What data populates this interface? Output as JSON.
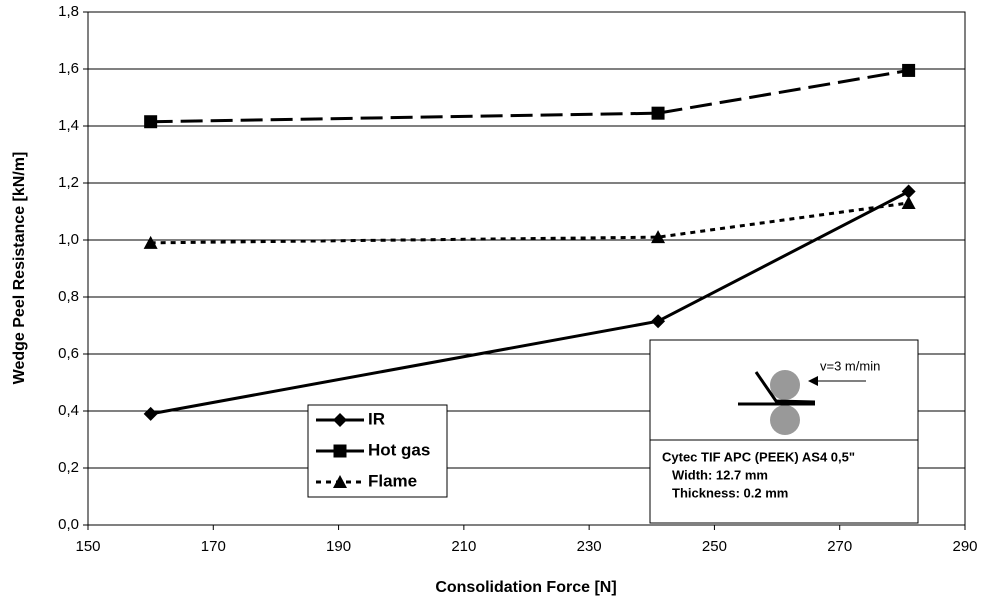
{
  "chart_data": {
    "type": "line",
    "x_label": "Consolidation Force [N]",
    "y_label": "Wedge Peel Resistance [kN/m]",
    "x": [
      160,
      241,
      281
    ],
    "series": [
      {
        "name": "IR",
        "color": "#000000",
        "dash": "solid",
        "marker": "diamond",
        "values": [
          0.39,
          0.715,
          1.17
        ]
      },
      {
        "name": "Hot gas",
        "color": "#000000",
        "dash": "dashed",
        "marker": "square",
        "values": [
          1.415,
          1.445,
          1.595
        ]
      },
      {
        "name": "Flame",
        "color": "#000000",
        "dash": "dotted",
        "marker": "triangle",
        "values": [
          0.99,
          1.01,
          1.13
        ]
      }
    ],
    "xlim": [
      150,
      290
    ],
    "xticks": [
      150,
      170,
      190,
      210,
      230,
      250,
      270,
      290
    ],
    "ylim": [
      0,
      1.8
    ],
    "yticks": [
      {
        "value": 0,
        "label": "0,0"
      },
      {
        "value": 0.2,
        "label": "0,2"
      },
      {
        "value": 0.4,
        "label": "0,4"
      },
      {
        "value": 0.6,
        "label": "0,6"
      },
      {
        "value": 0.8,
        "label": "0,8"
      },
      {
        "value": 1.0,
        "label": "1,0"
      },
      {
        "value": 1.2,
        "label": "1,2"
      },
      {
        "value": 1.4,
        "label": "1,4"
      },
      {
        "value": 1.6,
        "label": "1,6"
      },
      {
        "value": 1.8,
        "label": "1,8"
      }
    ],
    "grid": true,
    "annotations": {
      "speed": "v=3 m/min",
      "material": "Cytec TIF APC (PEEK) AS4 0,5\"",
      "width": "Width: 12.7 mm",
      "thickness": "Thickness: 0.2 mm"
    }
  }
}
